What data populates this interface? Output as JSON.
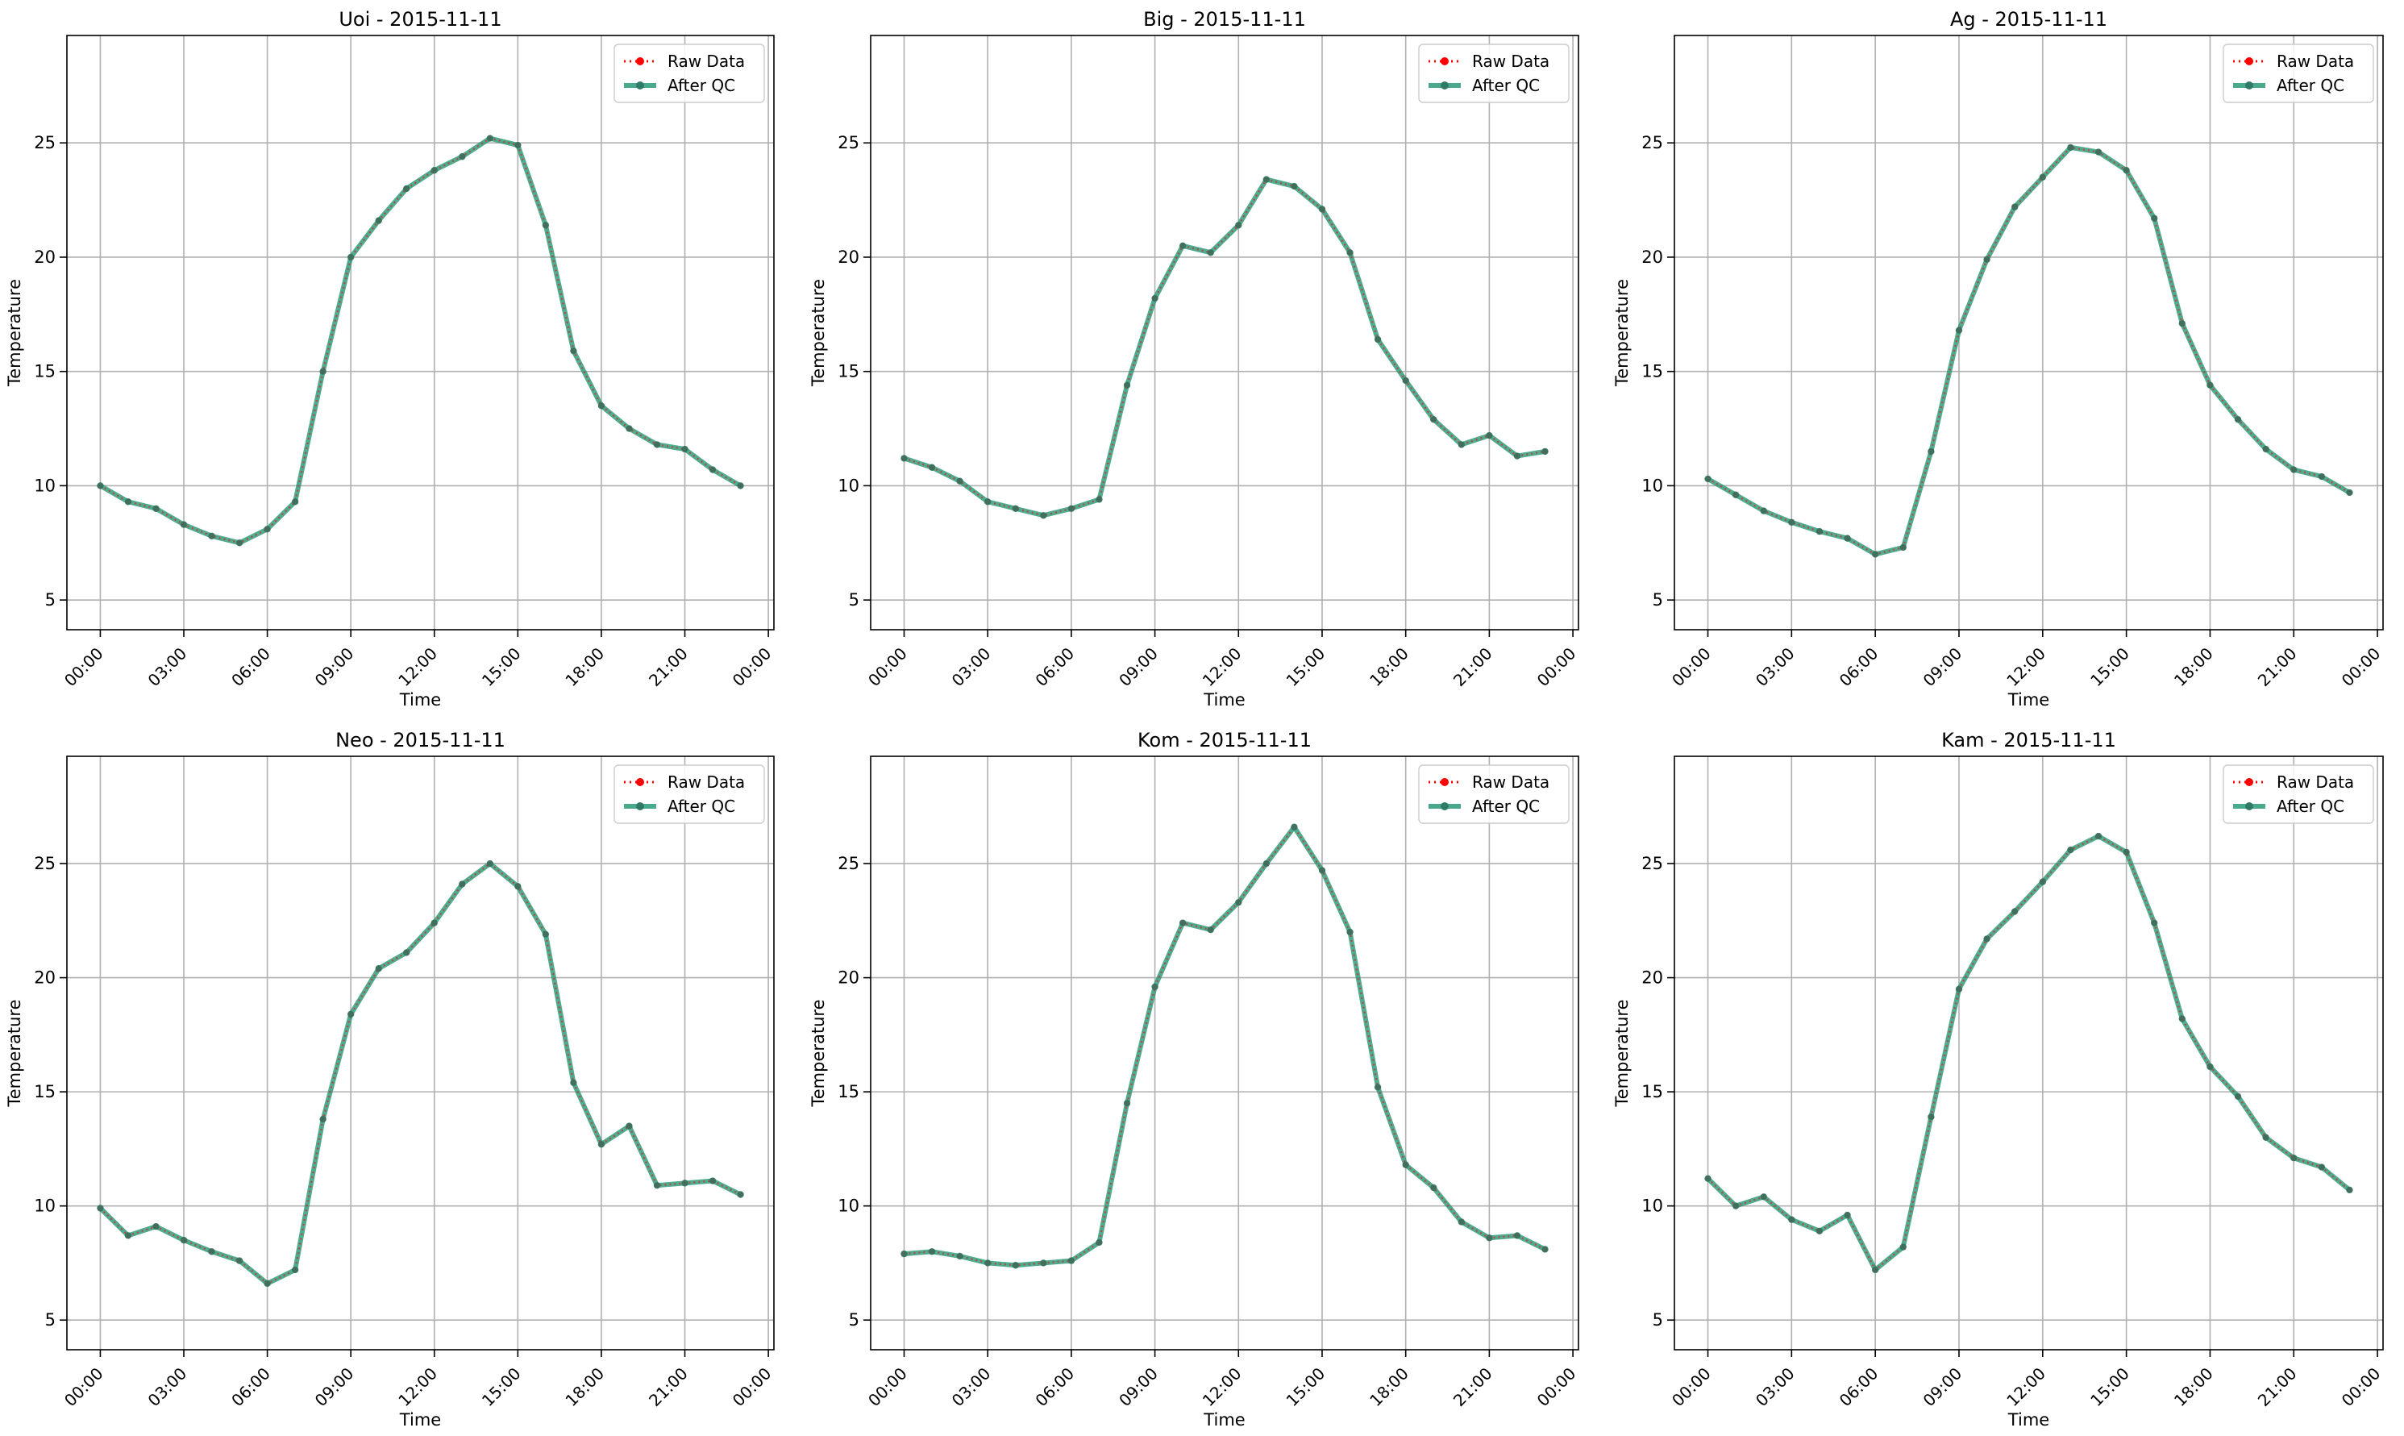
{
  "chart_data": [
    {
      "type": "line",
      "title": "Uoi - 2015-11-11",
      "xlabel": "Time",
      "ylabel": "Temperature",
      "xticks": [
        "00:00",
        "03:00",
        "06:00",
        "09:00",
        "12:00",
        "15:00",
        "18:00",
        "21:00",
        "00:00"
      ],
      "yticks": [
        5,
        10,
        15,
        20,
        25
      ],
      "ylim": [
        3.7,
        29.7
      ],
      "xlim": [
        -1.2,
        24.2
      ],
      "grid": true,
      "legend_position": "top-right",
      "x": [
        0,
        1,
        2,
        3,
        4,
        5,
        6,
        7,
        8,
        9,
        10,
        11,
        12,
        13,
        14,
        15,
        16,
        17,
        18,
        19,
        20,
        21,
        22,
        23
      ],
      "series": [
        {
          "name": "Raw Data",
          "color": "#ff0000",
          "style": "dotted",
          "values": [
            10.0,
            9.3,
            9.0,
            8.3,
            7.8,
            7.5,
            8.1,
            9.3,
            15.0,
            20.0,
            21.6,
            23.0,
            23.8,
            24.4,
            25.2,
            24.9,
            21.4,
            15.9,
            13.5,
            12.5,
            11.8,
            11.6,
            10.7,
            10.0
          ]
        },
        {
          "name": "After QC",
          "color": "#2a9a78",
          "style": "solid",
          "values": [
            10.0,
            9.3,
            9.0,
            8.3,
            7.8,
            7.5,
            8.1,
            9.3,
            15.0,
            20.0,
            21.6,
            23.0,
            23.8,
            24.4,
            25.2,
            24.9,
            21.4,
            15.9,
            13.5,
            12.5,
            11.8,
            11.6,
            10.7,
            10.0
          ]
        }
      ]
    },
    {
      "type": "line",
      "title": "Big - 2015-11-11",
      "xlabel": "Time",
      "ylabel": "Temperature",
      "xticks": [
        "00:00",
        "03:00",
        "06:00",
        "09:00",
        "12:00",
        "15:00",
        "18:00",
        "21:00",
        "00:00"
      ],
      "yticks": [
        5,
        10,
        15,
        20,
        25
      ],
      "ylim": [
        3.7,
        29.7
      ],
      "xlim": [
        -1.2,
        24.2
      ],
      "grid": true,
      "legend_position": "top-right",
      "x": [
        0,
        1,
        2,
        3,
        4,
        5,
        6,
        7,
        8,
        9,
        10,
        11,
        12,
        13,
        14,
        15,
        16,
        17,
        18,
        19,
        20,
        21,
        22,
        23
      ],
      "series": [
        {
          "name": "Raw Data",
          "color": "#ff0000",
          "style": "dotted",
          "values": [
            11.2,
            10.8,
            10.2,
            9.3,
            9.0,
            8.7,
            9.0,
            9.4,
            14.4,
            18.2,
            20.5,
            20.2,
            21.4,
            23.4,
            23.1,
            22.1,
            20.2,
            16.4,
            14.6,
            12.9,
            11.8,
            12.2,
            11.3,
            11.5
          ]
        },
        {
          "name": "After QC",
          "color": "#2a9a78",
          "style": "solid",
          "values": [
            11.2,
            10.8,
            10.2,
            9.3,
            9.0,
            8.7,
            9.0,
            9.4,
            14.4,
            18.2,
            20.5,
            20.2,
            21.4,
            23.4,
            23.1,
            22.1,
            20.2,
            16.4,
            14.6,
            12.9,
            11.8,
            12.2,
            11.3,
            11.5
          ]
        }
      ]
    },
    {
      "type": "line",
      "title": "Ag - 2015-11-11",
      "xlabel": "Time",
      "ylabel": "Temperature",
      "xticks": [
        "00:00",
        "03:00",
        "06:00",
        "09:00",
        "12:00",
        "15:00",
        "18:00",
        "21:00",
        "00:00"
      ],
      "yticks": [
        5,
        10,
        15,
        20,
        25
      ],
      "ylim": [
        3.7,
        29.7
      ],
      "xlim": [
        -1.2,
        24.2
      ],
      "grid": true,
      "legend_position": "top-right",
      "x": [
        0,
        1,
        2,
        3,
        4,
        5,
        6,
        7,
        8,
        9,
        10,
        11,
        12,
        13,
        14,
        15,
        16,
        17,
        18,
        19,
        20,
        21,
        22,
        23
      ],
      "series": [
        {
          "name": "Raw Data",
          "color": "#ff0000",
          "style": "dotted",
          "values": [
            10.3,
            9.6,
            8.9,
            8.4,
            8.0,
            7.7,
            7.0,
            7.3,
            11.5,
            16.8,
            19.9,
            22.2,
            23.5,
            24.8,
            24.6,
            23.8,
            21.7,
            17.1,
            14.4,
            12.9,
            11.6,
            10.7,
            10.4,
            9.7
          ]
        },
        {
          "name": "After QC",
          "color": "#2a9a78",
          "style": "solid",
          "values": [
            10.3,
            9.6,
            8.9,
            8.4,
            8.0,
            7.7,
            7.0,
            7.3,
            11.5,
            16.8,
            19.9,
            22.2,
            23.5,
            24.8,
            24.6,
            23.8,
            21.7,
            17.1,
            14.4,
            12.9,
            11.6,
            10.7,
            10.4,
            9.7
          ]
        }
      ]
    },
    {
      "type": "line",
      "title": "Neo - 2015-11-11",
      "xlabel": "Time",
      "ylabel": "Temperature",
      "xticks": [
        "00:00",
        "03:00",
        "06:00",
        "09:00",
        "12:00",
        "15:00",
        "18:00",
        "21:00",
        "00:00"
      ],
      "yticks": [
        5,
        10,
        15,
        20,
        25
      ],
      "ylim": [
        3.7,
        29.7
      ],
      "xlim": [
        -1.2,
        24.2
      ],
      "grid": true,
      "legend_position": "top-right",
      "x": [
        0,
        1,
        2,
        3,
        4,
        5,
        6,
        7,
        8,
        9,
        10,
        11,
        12,
        13,
        14,
        15,
        16,
        17,
        18,
        19,
        20,
        21,
        22,
        23
      ],
      "series": [
        {
          "name": "Raw Data",
          "color": "#ff0000",
          "style": "dotted",
          "values": [
            9.9,
            8.7,
            9.1,
            8.5,
            8.0,
            7.6,
            6.6,
            7.2,
            13.8,
            18.4,
            20.4,
            21.1,
            22.4,
            24.1,
            25.0,
            24.0,
            21.9,
            15.4,
            12.7,
            13.5,
            10.9,
            11.0,
            11.1,
            10.5
          ]
        },
        {
          "name": "After QC",
          "color": "#2a9a78",
          "style": "solid",
          "values": [
            9.9,
            8.7,
            9.1,
            8.5,
            8.0,
            7.6,
            6.6,
            7.2,
            13.8,
            18.4,
            20.4,
            21.1,
            22.4,
            24.1,
            25.0,
            24.0,
            21.9,
            15.4,
            12.7,
            13.5,
            10.9,
            11.0,
            11.1,
            10.5
          ]
        }
      ]
    },
    {
      "type": "line",
      "title": "Kom - 2015-11-11",
      "xlabel": "Time",
      "ylabel": "Temperature",
      "xticks": [
        "00:00",
        "03:00",
        "06:00",
        "09:00",
        "12:00",
        "15:00",
        "18:00",
        "21:00",
        "00:00"
      ],
      "yticks": [
        5,
        10,
        15,
        20,
        25
      ],
      "ylim": [
        3.7,
        29.7
      ],
      "xlim": [
        -1.2,
        24.2
      ],
      "grid": true,
      "legend_position": "top-right",
      "x": [
        0,
        1,
        2,
        3,
        4,
        5,
        6,
        7,
        8,
        9,
        10,
        11,
        12,
        13,
        14,
        15,
        16,
        17,
        18,
        19,
        20,
        21,
        22,
        23
      ],
      "series": [
        {
          "name": "Raw Data",
          "color": "#ff0000",
          "style": "dotted",
          "values": [
            7.9,
            8.0,
            7.8,
            7.5,
            7.4,
            7.5,
            7.6,
            8.4,
            14.5,
            19.6,
            22.4,
            22.1,
            23.3,
            25.0,
            26.6,
            24.7,
            22.0,
            15.2,
            11.8,
            10.8,
            9.3,
            8.6,
            8.7,
            8.1
          ]
        },
        {
          "name": "After QC",
          "color": "#2a9a78",
          "style": "solid",
          "values": [
            7.9,
            8.0,
            7.8,
            7.5,
            7.4,
            7.5,
            7.6,
            8.4,
            14.5,
            19.6,
            22.4,
            22.1,
            23.3,
            25.0,
            26.6,
            24.7,
            22.0,
            15.2,
            11.8,
            10.8,
            9.3,
            8.6,
            8.7,
            8.1
          ]
        }
      ]
    },
    {
      "type": "line",
      "title": "Kam - 2015-11-11",
      "xlabel": "Time",
      "ylabel": "Temperature",
      "xticks": [
        "00:00",
        "03:00",
        "06:00",
        "09:00",
        "12:00",
        "15:00",
        "18:00",
        "21:00",
        "00:00"
      ],
      "yticks": [
        5,
        10,
        15,
        20,
        25
      ],
      "ylim": [
        3.7,
        29.7
      ],
      "xlim": [
        -1.2,
        24.2
      ],
      "grid": true,
      "legend_position": "top-right",
      "x": [
        0,
        1,
        2,
        3,
        4,
        5,
        6,
        7,
        8,
        9,
        10,
        11,
        12,
        13,
        14,
        15,
        16,
        17,
        18,
        19,
        20,
        21,
        22,
        23
      ],
      "series": [
        {
          "name": "Raw Data",
          "color": "#ff0000",
          "style": "dotted",
          "values": [
            11.2,
            10.0,
            10.4,
            9.4,
            8.9,
            9.6,
            7.2,
            8.2,
            13.9,
            19.5,
            21.7,
            22.9,
            24.2,
            25.6,
            26.2,
            25.5,
            22.4,
            18.2,
            16.1,
            14.8,
            13.0,
            12.1,
            11.7,
            10.7
          ]
        },
        {
          "name": "After QC",
          "color": "#2a9a78",
          "style": "solid",
          "values": [
            11.2,
            10.0,
            10.4,
            9.4,
            8.9,
            9.6,
            7.2,
            8.2,
            13.9,
            19.5,
            21.7,
            22.9,
            24.2,
            25.6,
            26.2,
            25.5,
            22.4,
            18.2,
            16.1,
            14.8,
            13.0,
            12.1,
            11.7,
            10.7
          ]
        }
      ]
    }
  ]
}
